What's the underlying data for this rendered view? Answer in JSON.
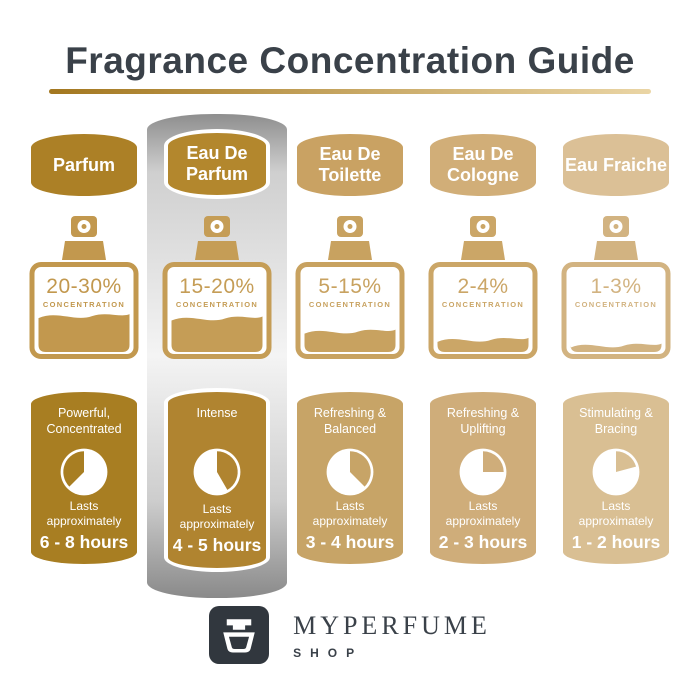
{
  "title": "Fragrance Concentration Guide",
  "underline_colors": {
    "left": "#A3771F",
    "right": "#EAD5A5"
  },
  "highlight_strip_colors": {
    "top": "#8E8E8E",
    "mid": "#F4F4F4",
    "bottom": "#8A8A8A"
  },
  "columns": [
    {
      "name": "Parfum",
      "concentration": "20-30%",
      "concentration_label": "CONCENTRATION",
      "character": "Powerful, Concentrated",
      "lasts_label": "Lasts approximately",
      "duration": "6 - 8 hours",
      "fill_percent": 45,
      "clock_notch": {
        "start": 225,
        "end": 360
      },
      "colors": {
        "badge": "#AC8026",
        "bottle": "#C2984E",
        "card": "#A87E22"
      },
      "highlighted": false
    },
    {
      "name": "Eau De Parfum",
      "concentration": "15-20%",
      "concentration_label": "CONCENTRATION",
      "character": "Intense",
      "lasts_label": "Lasts approximately",
      "duration": "4 - 5 hours",
      "fill_percent": 42,
      "clock_notch": {
        "start": 0,
        "end": 150
      },
      "colors": {
        "badge": "#B3872D",
        "bottle": "#C59D56",
        "card": "#B08430"
      },
      "highlighted": true
    },
    {
      "name": "Eau De Toilette",
      "concentration": "5-15%",
      "concentration_label": "CONCENTRATION",
      "character": "Refreshing & Balanced",
      "lasts_label": "Lasts approximately",
      "duration": "3 - 4 hours",
      "fill_percent": 26,
      "clock_notch": {
        "start": 0,
        "end": 135
      },
      "colors": {
        "badge": "#C9A263",
        "bottle": "#C8A260",
        "card": "#C7A467"
      },
      "highlighted": false
    },
    {
      "name": "Eau De Cologne",
      "concentration": "2-4%",
      "concentration_label": "CONCENTRATION",
      "character": "Refreshing & Uplifting",
      "lasts_label": "Lasts approximately",
      "duration": "2 - 3 hours",
      "fill_percent": 16,
      "clock_notch": {
        "start": 0,
        "end": 90
      },
      "colors": {
        "badge": "#D1AE78",
        "bottle": "#CBA667",
        "card": "#CFAD7A"
      },
      "highlighted": false
    },
    {
      "name": "Eau Fraiche",
      "concentration": "1-3%",
      "concentration_label": "CONCENTRATION",
      "character": "Stimulating & Bracing",
      "lasts_label": "Lasts approximately",
      "duration": "1 - 2 hours",
      "fill_percent": 9,
      "clock_notch": {
        "start": 0,
        "end": 75
      },
      "colors": {
        "badge": "#DBC096",
        "bottle": "#D2B381",
        "card": "#D9BF93"
      },
      "highlighted": false
    }
  ],
  "brand": {
    "name": "MYPERFUME",
    "sub": "SHOP",
    "box_color": "#31373E",
    "text_color": "#3A4149"
  }
}
